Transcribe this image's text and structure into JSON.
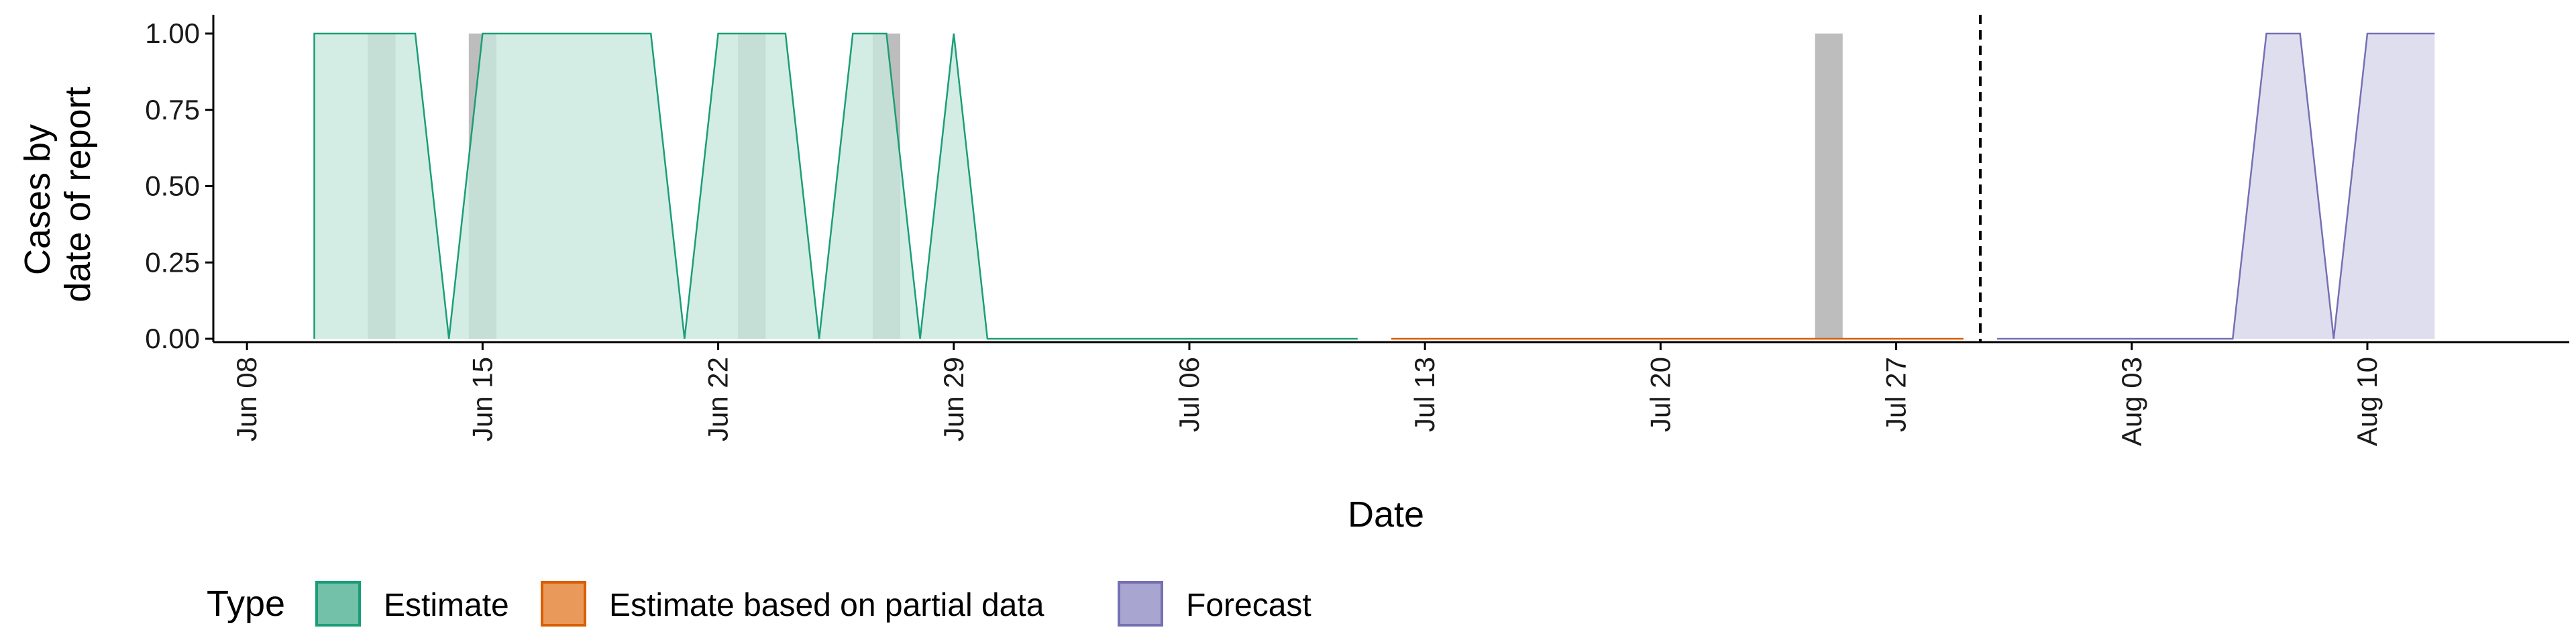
{
  "chart_data": {
    "type": "area",
    "xlabel": "Date",
    "ylabel_lines": [
      "Cases by",
      "date of report"
    ],
    "yticks": [
      "0.00",
      "0.25",
      "0.50",
      "0.75",
      "1.00"
    ],
    "ylim": [
      0,
      1
    ],
    "xlim": [
      "2020-06-07",
      "2020-08-16"
    ],
    "xticks": [
      {
        "date": "2020-06-08",
        "label": "Jun 08"
      },
      {
        "date": "2020-06-15",
        "label": "Jun 15"
      },
      {
        "date": "2020-06-22",
        "label": "Jun 22"
      },
      {
        "date": "2020-06-29",
        "label": "Jun 29"
      },
      {
        "date": "2020-07-06",
        "label": "Jul 06"
      },
      {
        "date": "2020-07-13",
        "label": "Jul 13"
      },
      {
        "date": "2020-07-20",
        "label": "Jul 20"
      },
      {
        "date": "2020-07-27",
        "label": "Jul 27"
      },
      {
        "date": "2020-08-03",
        "label": "Aug 03"
      },
      {
        "date": "2020-08-10",
        "label": "Aug 10"
      }
    ],
    "observed_cases": [
      {
        "date": "2020-06-12",
        "value": 1
      },
      {
        "date": "2020-06-15",
        "value": 1
      },
      {
        "date": "2020-06-23",
        "value": 1
      },
      {
        "date": "2020-06-27",
        "value": 1
      },
      {
        "date": "2020-07-25",
        "value": 1
      }
    ],
    "forecast_start": "2020-07-29",
    "series": [
      {
        "name": "Estimate",
        "fill": "#c6e7dd",
        "line": "#1b9e77",
        "points": [
          {
            "x": "2020-06-10",
            "y": 0
          },
          {
            "x": "2020-06-10",
            "y": 1
          },
          {
            "x": "2020-06-11",
            "y": 1
          },
          {
            "x": "2020-06-12",
            "y": 1
          },
          {
            "x": "2020-06-13",
            "y": 1
          },
          {
            "x": "2020-06-14",
            "y": 0
          },
          {
            "x": "2020-06-15",
            "y": 1
          },
          {
            "x": "2020-06-16",
            "y": 1
          },
          {
            "x": "2020-06-17",
            "y": 1
          },
          {
            "x": "2020-06-18",
            "y": 1
          },
          {
            "x": "2020-06-19",
            "y": 1
          },
          {
            "x": "2020-06-20",
            "y": 1
          },
          {
            "x": "2020-06-21",
            "y": 0
          },
          {
            "x": "2020-06-22",
            "y": 1
          },
          {
            "x": "2020-06-23",
            "y": 1
          },
          {
            "x": "2020-06-24",
            "y": 1
          },
          {
            "x": "2020-06-25",
            "y": 0
          },
          {
            "x": "2020-06-26",
            "y": 1
          },
          {
            "x": "2020-06-27",
            "y": 1
          },
          {
            "x": "2020-06-28",
            "y": 0
          },
          {
            "x": "2020-06-29",
            "y": 1
          },
          {
            "x": "2020-06-30",
            "y": 0
          },
          {
            "x": "2020-07-01",
            "y": 0
          },
          {
            "x": "2020-07-05",
            "y": 0
          },
          {
            "x": "2020-07-11",
            "y": 0
          }
        ]
      },
      {
        "name": "Estimate based on partial data",
        "fill": "#e99a5b",
        "line": "#d95f02",
        "points": [
          {
            "x": "2020-07-12",
            "y": 0
          },
          {
            "x": "2020-07-29",
            "y": 0
          }
        ]
      },
      {
        "name": "Forecast",
        "fill": "#dcdaec",
        "line": "#7570b3",
        "points": [
          {
            "x": "2020-07-30",
            "y": 0
          },
          {
            "x": "2020-08-06",
            "y": 0
          },
          {
            "x": "2020-08-07",
            "y": 1
          },
          {
            "x": "2020-08-08",
            "y": 1
          },
          {
            "x": "2020-08-09",
            "y": 0
          },
          {
            "x": "2020-08-10",
            "y": 1
          },
          {
            "x": "2020-08-11",
            "y": 1
          },
          {
            "x": "2020-08-12",
            "y": 1
          }
        ]
      }
    ],
    "legend": {
      "title": "Type",
      "position": "bottom-left",
      "items": [
        {
          "label": "Estimate",
          "fill": "#72c1a8",
          "line": "#1b9e77"
        },
        {
          "label": "Estimate based on partial data",
          "fill": "#e99a5b",
          "line": "#d95f02"
        },
        {
          "label": "Forecast",
          "fill": "#a9a5d1",
          "line": "#7570b3"
        }
      ]
    },
    "colors": {
      "observed_bar": "#bdbdbd",
      "axis": "#000000",
      "forecast_line": "#000000"
    }
  }
}
